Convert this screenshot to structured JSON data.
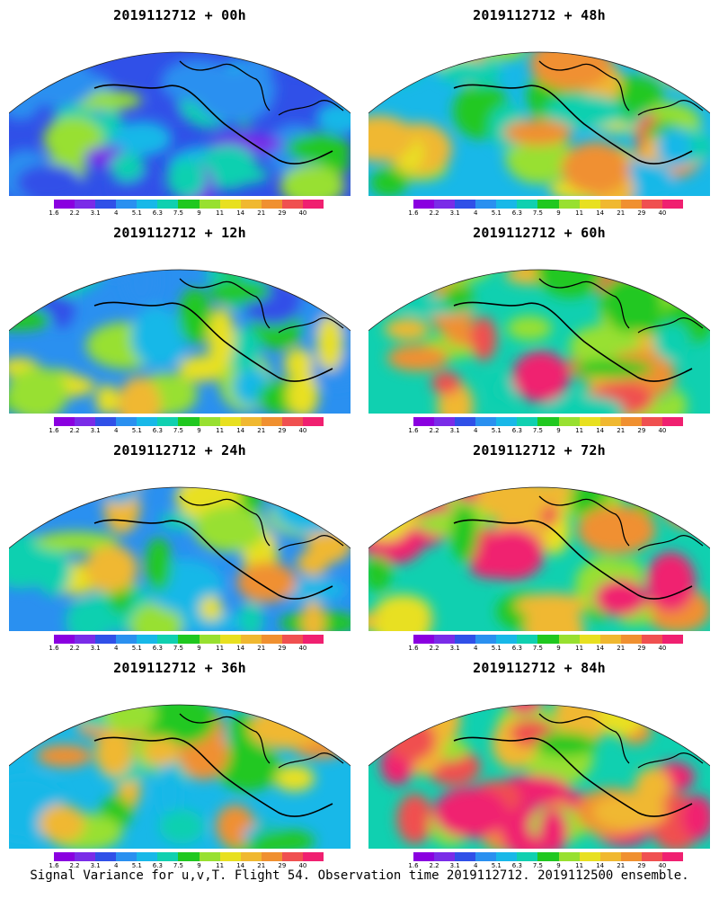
{
  "panels": [
    {
      "title": "2019112712 + 00h",
      "level": 0.35,
      "seed": 1
    },
    {
      "title": "2019112712 + 48h",
      "level": 0.62,
      "seed": 5
    },
    {
      "title": "2019112712 + 12h",
      "level": 0.45,
      "seed": 2
    },
    {
      "title": "2019112712 + 60h",
      "level": 0.7,
      "seed": 6
    },
    {
      "title": "2019112712 + 24h",
      "level": 0.52,
      "seed": 3
    },
    {
      "title": "2019112712 + 72h",
      "level": 0.76,
      "seed": 7
    },
    {
      "title": "2019112712 + 36h",
      "level": 0.58,
      "seed": 4
    },
    {
      "title": "2019112712 + 84h",
      "level": 0.82,
      "seed": 8
    }
  ],
  "colorbar": {
    "colors": [
      "#8a00e0",
      "#7a2ce8",
      "#3050e8",
      "#2a90f0",
      "#18b8e8",
      "#10d0b0",
      "#20c820",
      "#98e030",
      "#e8e020",
      "#f0b830",
      "#f09030",
      "#f05050",
      "#f02070"
    ],
    "labels": [
      "1.6",
      "2.2",
      "3.1",
      "4",
      "5.1",
      "6.3",
      "7.5",
      "9",
      "11",
      "14",
      "21",
      "29",
      "40"
    ]
  },
  "footer": "Signal Variance for u,v,T. Flight 54. Observation time 2019112712. 2019112500 ensemble."
}
